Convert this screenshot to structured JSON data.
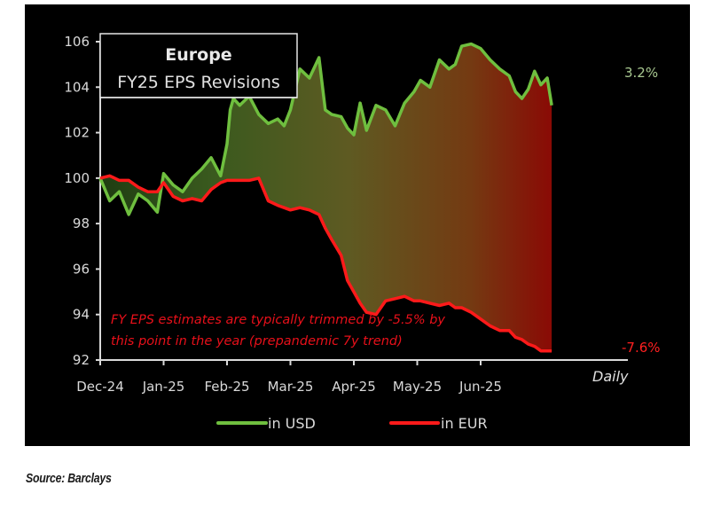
{
  "chart_data": {
    "type": "area",
    "title": "Europe",
    "subtitle": "FY25 EPS Revisions",
    "xlabel": "Daily",
    "ylabel": "",
    "ylim": [
      92,
      106
    ],
    "yticks": [
      "92",
      "94",
      "96",
      "98",
      "100",
      "102",
      "104",
      "106"
    ],
    "xticks": [
      "Dec-24",
      "Jan-25",
      "Feb-25",
      "Mar-25",
      "Apr-25",
      "May-25",
      "Jun-25"
    ],
    "grid": false,
    "legend_position": "bottom",
    "x_months": [
      0,
      0.15,
      0.3,
      0.45,
      0.6,
      0.75,
      0.9,
      1.0,
      1.15,
      1.3,
      1.45,
      1.6,
      1.75,
      1.9,
      2.0,
      2.05,
      2.1,
      2.2,
      2.35,
      2.5,
      2.65,
      2.8,
      2.9,
      3.0,
      3.15,
      3.3,
      3.45,
      3.55,
      3.65,
      3.8,
      3.9,
      4.0,
      4.1,
      4.2,
      4.35,
      4.5,
      4.65,
      4.8,
      4.95,
      5.05,
      5.2,
      5.35,
      5.5,
      5.6,
      5.7,
      5.85,
      6.0,
      6.15,
      6.3,
      6.45,
      6.55,
      6.65,
      6.75,
      6.85,
      6.95,
      7.05,
      7.12
    ],
    "series": [
      {
        "name": "in USD",
        "color": "#6fbf3f",
        "end_label": "3.2%",
        "values": [
          100.0,
          99.0,
          99.4,
          98.4,
          99.3,
          99.0,
          98.5,
          100.2,
          99.7,
          99.4,
          100.0,
          100.4,
          100.9,
          100.1,
          101.5,
          103.0,
          103.5,
          103.2,
          103.6,
          102.8,
          102.4,
          102.6,
          102.3,
          103.0,
          104.8,
          104.4,
          105.3,
          103.0,
          102.8,
          102.7,
          102.2,
          101.9,
          103.3,
          102.1,
          103.2,
          103.0,
          102.3,
          103.3,
          103.8,
          104.3,
          104.0,
          105.2,
          104.8,
          105.0,
          105.8,
          105.9,
          105.7,
          105.2,
          104.8,
          104.5,
          103.8,
          103.5,
          103.9,
          104.7,
          104.1,
          104.4,
          103.2
        ]
      },
      {
        "name": "in EUR",
        "color": "#ff1a1a",
        "end_label": "-7.6%",
        "values": [
          100.0,
          100.1,
          99.9,
          99.9,
          99.6,
          99.4,
          99.4,
          99.8,
          99.2,
          99.0,
          99.1,
          99.0,
          99.5,
          99.8,
          99.9,
          99.9,
          99.9,
          99.9,
          99.9,
          100.0,
          99.0,
          98.8,
          98.7,
          98.6,
          98.7,
          98.6,
          98.4,
          97.8,
          97.3,
          96.6,
          95.5,
          95.0,
          94.5,
          94.1,
          94.0,
          94.6,
          94.7,
          94.8,
          94.6,
          94.6,
          94.5,
          94.4,
          94.5,
          94.3,
          94.3,
          94.1,
          93.8,
          93.5,
          93.3,
          93.3,
          93.0,
          92.9,
          92.7,
          92.6,
          92.4,
          92.4,
          92.4
        ]
      }
    ],
    "annotation": {
      "line1": "FY EPS estimates are typically trimmed by -5.5% by",
      "line2": "this point in the year (prepandemic 7y trend)",
      "color": "#e8101a"
    }
  },
  "legend": {
    "items": [
      {
        "label": "in USD",
        "color": "#6fbf3f"
      },
      {
        "label": "in EUR",
        "color": "#ff1a1a"
      }
    ]
  },
  "source": "Source: Barclays"
}
